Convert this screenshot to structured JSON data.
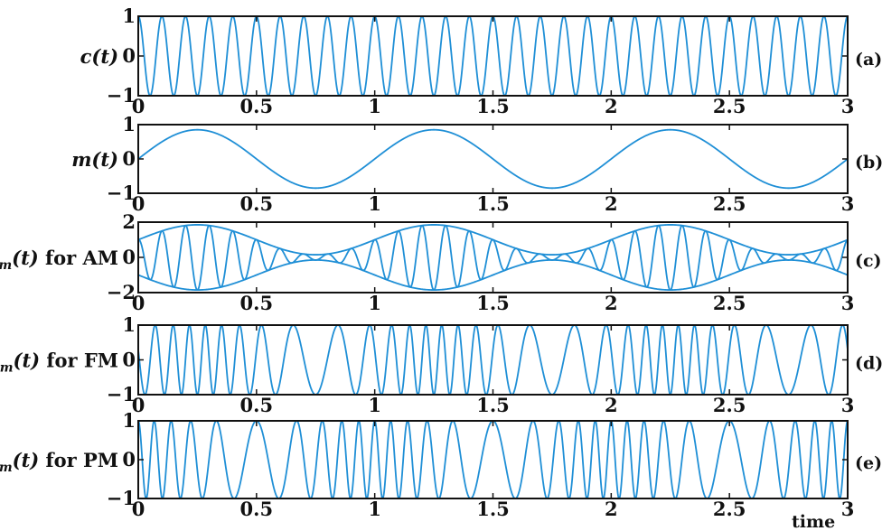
{
  "x_axis_label": "time",
  "colors": {
    "trace": "#1f8fd6",
    "frame": "#111111"
  },
  "chart_data": [
    {
      "type": "line",
      "panel_label": "(a)",
      "ylabel": {
        "main": "c(t)",
        "suffix": ""
      },
      "xlim": [
        0,
        3
      ],
      "ylim": [
        -1,
        1
      ],
      "xticks": [
        "0",
        "0.5",
        "1",
        "1.5",
        "2",
        "2.5",
        "3"
      ],
      "yticks": [
        "-1",
        "0",
        "1"
      ],
      "series": [
        {
          "equation": "cos(2*pi*10*t)",
          "carrier_frequency": 10,
          "t_range": [
            0,
            3
          ]
        }
      ]
    },
    {
      "type": "line",
      "panel_label": "(b)",
      "ylabel": {
        "main": "m(t)",
        "suffix": ""
      },
      "xlim": [
        0,
        3
      ],
      "ylim": [
        -1,
        1
      ],
      "xticks": [
        "0",
        "0.5",
        "1",
        "1.5",
        "2",
        "2.5",
        "3"
      ],
      "yticks": [
        "-1",
        "0",
        "1"
      ],
      "series": [
        {
          "equation": "0.85*sin(2*pi*t)",
          "amplitude": 0.85,
          "frequency": 1,
          "t_range": [
            0,
            3
          ]
        }
      ]
    },
    {
      "type": "line",
      "panel_label": "(c)",
      "ylabel": {
        "main": "c",
        "sub": "m",
        "paren": "(t)",
        "suffix": " for AM"
      },
      "xlim": [
        0,
        3
      ],
      "ylim": [
        -2,
        2
      ],
      "xticks": [
        "0",
        "0.5",
        "1",
        "1.5",
        "2",
        "2.5",
        "3"
      ],
      "yticks": [
        "-2",
        "0",
        "2"
      ],
      "series": [
        {
          "equation": "(1+0.85*sin(2*pi*t))*cos(2*pi*10*t)",
          "t_range": [
            0,
            3
          ]
        },
        {
          "equation": "+(1+0.85*sin(2*pi*t))",
          "role": "upper envelope",
          "t_range": [
            0,
            3
          ]
        },
        {
          "equation": "-(1+0.85*sin(2*pi*t))",
          "role": "lower envelope",
          "t_range": [
            0,
            3
          ]
        }
      ]
    },
    {
      "type": "line",
      "panel_label": "(d)",
      "ylabel": {
        "main": "c",
        "sub": "m",
        "paren": "(t)",
        "suffix": " for FM"
      },
      "xlim": [
        0,
        3
      ],
      "ylim": [
        -1,
        1
      ],
      "xticks": [
        "0",
        "0.5",
        "1",
        "1.5",
        "2",
        "2.5",
        "3"
      ],
      "yticks": [
        "-1",
        "0",
        "1"
      ],
      "series": [
        {
          "equation": "cos(2*pi*10*t - 5*cos(2*pi*t))",
          "t_range": [
            0,
            3
          ]
        }
      ]
    },
    {
      "type": "line",
      "panel_label": "(e)",
      "ylabel": {
        "main": "c",
        "sub": "m",
        "paren": "(t)",
        "suffix": " for PM"
      },
      "xlim": [
        0,
        3
      ],
      "ylim": [
        -1,
        1
      ],
      "xticks": [
        "0",
        "0.5",
        "1",
        "1.5",
        "2",
        "2.5",
        "3"
      ],
      "yticks": [
        "-1",
        "0",
        "1"
      ],
      "series": [
        {
          "equation": "cos(2*pi*10*t + 5*sin(2*pi*t))",
          "t_range": [
            0,
            3
          ]
        }
      ]
    }
  ]
}
